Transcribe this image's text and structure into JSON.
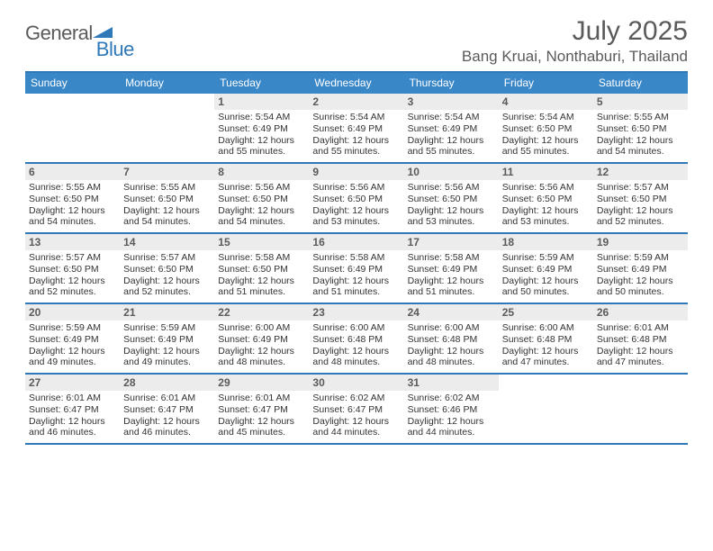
{
  "logo": {
    "part1": "General",
    "part2": "Blue"
  },
  "title": "July 2025",
  "location": "Bang Kruai, Nonthaburi, Thailand",
  "colors": {
    "accent": "#3a87c8",
    "line": "#2f79b9",
    "daybg": "#ececec",
    "text": "#333333",
    "muted": "#5a5a5a",
    "bg": "#ffffff"
  },
  "dow": [
    "Sunday",
    "Monday",
    "Tuesday",
    "Wednesday",
    "Thursday",
    "Friday",
    "Saturday"
  ],
  "weeks": [
    [
      null,
      null,
      {
        "n": "1",
        "sr": "5:54 AM",
        "ss": "6:49 PM",
        "dl": "12 hours and 55 minutes."
      },
      {
        "n": "2",
        "sr": "5:54 AM",
        "ss": "6:49 PM",
        "dl": "12 hours and 55 minutes."
      },
      {
        "n": "3",
        "sr": "5:54 AM",
        "ss": "6:49 PM",
        "dl": "12 hours and 55 minutes."
      },
      {
        "n": "4",
        "sr": "5:54 AM",
        "ss": "6:50 PM",
        "dl": "12 hours and 55 minutes."
      },
      {
        "n": "5",
        "sr": "5:55 AM",
        "ss": "6:50 PM",
        "dl": "12 hours and 54 minutes."
      }
    ],
    [
      {
        "n": "6",
        "sr": "5:55 AM",
        "ss": "6:50 PM",
        "dl": "12 hours and 54 minutes."
      },
      {
        "n": "7",
        "sr": "5:55 AM",
        "ss": "6:50 PM",
        "dl": "12 hours and 54 minutes."
      },
      {
        "n": "8",
        "sr": "5:56 AM",
        "ss": "6:50 PM",
        "dl": "12 hours and 54 minutes."
      },
      {
        "n": "9",
        "sr": "5:56 AM",
        "ss": "6:50 PM",
        "dl": "12 hours and 53 minutes."
      },
      {
        "n": "10",
        "sr": "5:56 AM",
        "ss": "6:50 PM",
        "dl": "12 hours and 53 minutes."
      },
      {
        "n": "11",
        "sr": "5:56 AM",
        "ss": "6:50 PM",
        "dl": "12 hours and 53 minutes."
      },
      {
        "n": "12",
        "sr": "5:57 AM",
        "ss": "6:50 PM",
        "dl": "12 hours and 52 minutes."
      }
    ],
    [
      {
        "n": "13",
        "sr": "5:57 AM",
        "ss": "6:50 PM",
        "dl": "12 hours and 52 minutes."
      },
      {
        "n": "14",
        "sr": "5:57 AM",
        "ss": "6:50 PM",
        "dl": "12 hours and 52 minutes."
      },
      {
        "n": "15",
        "sr": "5:58 AM",
        "ss": "6:50 PM",
        "dl": "12 hours and 51 minutes."
      },
      {
        "n": "16",
        "sr": "5:58 AM",
        "ss": "6:49 PM",
        "dl": "12 hours and 51 minutes."
      },
      {
        "n": "17",
        "sr": "5:58 AM",
        "ss": "6:49 PM",
        "dl": "12 hours and 51 minutes."
      },
      {
        "n": "18",
        "sr": "5:59 AM",
        "ss": "6:49 PM",
        "dl": "12 hours and 50 minutes."
      },
      {
        "n": "19",
        "sr": "5:59 AM",
        "ss": "6:49 PM",
        "dl": "12 hours and 50 minutes."
      }
    ],
    [
      {
        "n": "20",
        "sr": "5:59 AM",
        "ss": "6:49 PM",
        "dl": "12 hours and 49 minutes."
      },
      {
        "n": "21",
        "sr": "5:59 AM",
        "ss": "6:49 PM",
        "dl": "12 hours and 49 minutes."
      },
      {
        "n": "22",
        "sr": "6:00 AM",
        "ss": "6:49 PM",
        "dl": "12 hours and 48 minutes."
      },
      {
        "n": "23",
        "sr": "6:00 AM",
        "ss": "6:48 PM",
        "dl": "12 hours and 48 minutes."
      },
      {
        "n": "24",
        "sr": "6:00 AM",
        "ss": "6:48 PM",
        "dl": "12 hours and 48 minutes."
      },
      {
        "n": "25",
        "sr": "6:00 AM",
        "ss": "6:48 PM",
        "dl": "12 hours and 47 minutes."
      },
      {
        "n": "26",
        "sr": "6:01 AM",
        "ss": "6:48 PM",
        "dl": "12 hours and 47 minutes."
      }
    ],
    [
      {
        "n": "27",
        "sr": "6:01 AM",
        "ss": "6:47 PM",
        "dl": "12 hours and 46 minutes."
      },
      {
        "n": "28",
        "sr": "6:01 AM",
        "ss": "6:47 PM",
        "dl": "12 hours and 46 minutes."
      },
      {
        "n": "29",
        "sr": "6:01 AM",
        "ss": "6:47 PM",
        "dl": "12 hours and 45 minutes."
      },
      {
        "n": "30",
        "sr": "6:02 AM",
        "ss": "6:47 PM",
        "dl": "12 hours and 44 minutes."
      },
      {
        "n": "31",
        "sr": "6:02 AM",
        "ss": "6:46 PM",
        "dl": "12 hours and 44 minutes."
      },
      null,
      null
    ]
  ],
  "labels": {
    "sunrise": "Sunrise: ",
    "sunset": "Sunset: ",
    "daylight": "Daylight: "
  }
}
